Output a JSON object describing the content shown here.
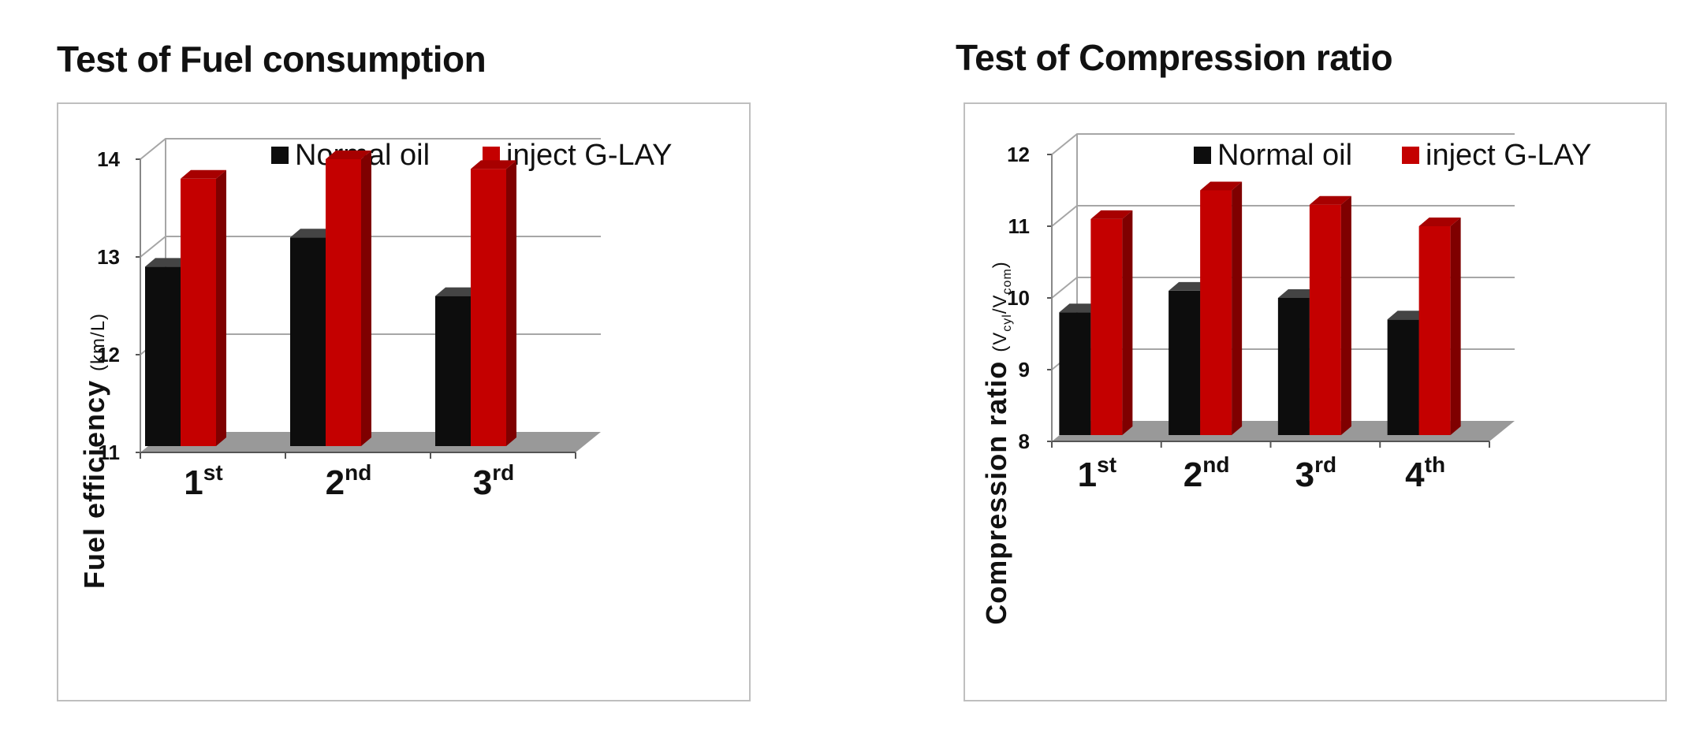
{
  "colors": {
    "normal_oil": "#0d0d0d",
    "inject_g_lay": "#c40000",
    "floor": "#999999",
    "grid": "#a6a6a6"
  },
  "chart_data": [
    {
      "type": "bar",
      "style": "3d",
      "title": "Test of Fuel consumption",
      "ylabel": "Fuel efficiency",
      "ylabel_unit": "(km/L)",
      "categories": [
        {
          "base": "1",
          "sup": "st"
        },
        {
          "base": "2",
          "sup": "nd"
        },
        {
          "base": "3",
          "sup": "rd"
        }
      ],
      "ylim": [
        11,
        14
      ],
      "yticks": [
        11,
        12,
        13,
        14
      ],
      "grid": true,
      "legend_position": "top",
      "series": [
        {
          "name": "Normal oil",
          "values": [
            12.9,
            13.2,
            12.6
          ]
        },
        {
          "name": "inject G-LAY",
          "values": [
            13.8,
            14.0,
            13.9
          ]
        }
      ]
    },
    {
      "type": "bar",
      "style": "3d",
      "title": "Test of Compression ratio",
      "ylabel": "Compression ratio",
      "ylabel_unit": {
        "open": "(V",
        "sub1": "cyl",
        "mid": "/V",
        "sub2": "com",
        "close": ")"
      },
      "categories": [
        {
          "base": "1",
          "sup": "st"
        },
        {
          "base": "2",
          "sup": "nd"
        },
        {
          "base": "3",
          "sup": "rd"
        },
        {
          "base": "4",
          "sup": "th"
        }
      ],
      "ylim": [
        8,
        12
      ],
      "yticks": [
        8,
        9,
        10,
        11,
        12
      ],
      "grid": true,
      "legend_position": "top",
      "series": [
        {
          "name": "Normal oil",
          "values": [
            9.8,
            10.1,
            10.0,
            9.7
          ]
        },
        {
          "name": "inject G-LAY",
          "values": [
            11.1,
            11.5,
            11.3,
            11.0
          ]
        }
      ]
    }
  ]
}
